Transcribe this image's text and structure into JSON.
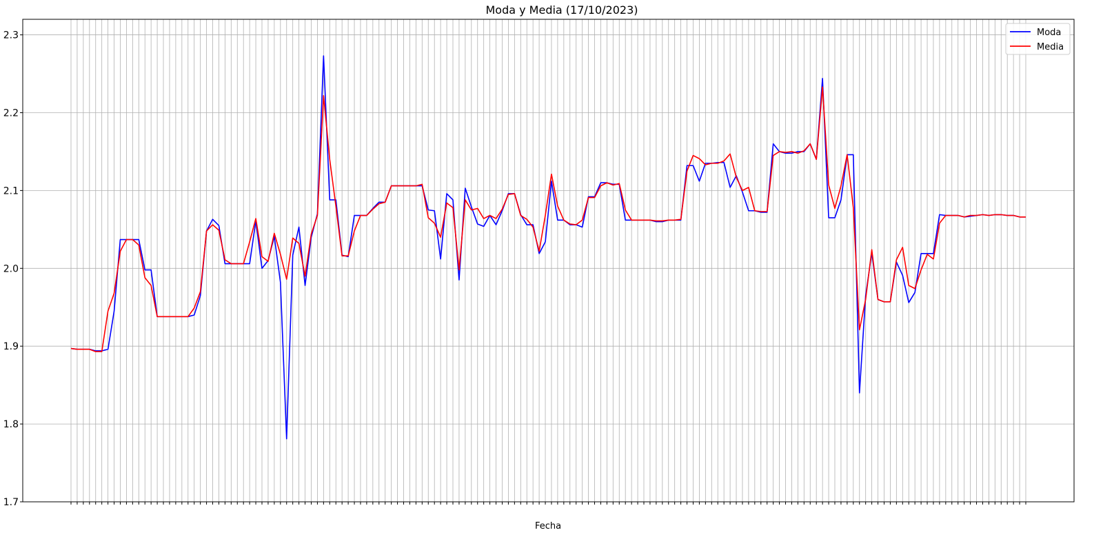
{
  "chart_data": {
    "type": "line",
    "title": "Moda y Media (17/10/2023)",
    "xlabel": "Fecha",
    "ylabel": "",
    "ylim": [
      1.7,
      2.32
    ],
    "yticks": [
      "1.7",
      "1.8",
      "1.9",
      "2.0",
      "2.1",
      "2.2",
      "2.3"
    ],
    "grid": true,
    "legend_position": "top-right",
    "colors": {
      "moda": "#0000ff",
      "media": "#ff0000",
      "grid": "#b0b0b0"
    },
    "series": [
      {
        "name": "Moda",
        "values": [
          1.897,
          1.896,
          1.896,
          1.896,
          1.894,
          1.894,
          1.896,
          1.945,
          2.037,
          2.037,
          2.037,
          2.037,
          1.998,
          1.998,
          1.938,
          1.938,
          1.938,
          1.938,
          1.938,
          1.938,
          1.94,
          1.965,
          2.048,
          2.063,
          2.055,
          2.006,
          2.006,
          2.006,
          2.006,
          2.006,
          2.061,
          2.0,
          2.01,
          2.041,
          1.982,
          1.781,
          2.017,
          2.053,
          1.978,
          2.04,
          2.07,
          2.273,
          2.088,
          2.088,
          2.017,
          2.015,
          2.068,
          2.068,
          2.068,
          2.077,
          2.085,
          2.085,
          2.106,
          2.106,
          2.106,
          2.106,
          2.106,
          2.106,
          2.075,
          2.074,
          2.012,
          2.096,
          2.088,
          1.985,
          2.103,
          2.079,
          2.057,
          2.054,
          2.068,
          2.056,
          2.074,
          2.096,
          2.096,
          2.069,
          2.056,
          2.056,
          2.019,
          2.034,
          2.112,
          2.062,
          2.062,
          2.056,
          2.056,
          2.053,
          2.092,
          2.092,
          2.11,
          2.11,
          2.108,
          2.108,
          2.062,
          2.062,
          2.062,
          2.062,
          2.062,
          2.06,
          2.06,
          2.062,
          2.062,
          2.062,
          2.132,
          2.132,
          2.112,
          2.135,
          2.135,
          2.136,
          2.136,
          2.104,
          2.119,
          2.098,
          2.074,
          2.074,
          2.072,
          2.072,
          2.16,
          2.15,
          2.148,
          2.148,
          2.15,
          2.15,
          2.16,
          2.14,
          2.244,
          2.065,
          2.065,
          2.088,
          2.146,
          2.146,
          1.84,
          1.965,
          2.02,
          1.96,
          1.957,
          1.957,
          2.008,
          1.991,
          1.956,
          1.969,
          2.019,
          2.019,
          2.019,
          2.069,
          2.068,
          2.068,
          2.068,
          2.066,
          2.067,
          2.068,
          2.069,
          2.068,
          2.069,
          2.069,
          2.068,
          2.068,
          2.066,
          2.066
        ]
      },
      {
        "name": "Media",
        "values": [
          1.897,
          1.896,
          1.896,
          1.896,
          1.893,
          1.893,
          1.945,
          1.968,
          2.022,
          2.037,
          2.037,
          2.03,
          1.988,
          1.978,
          1.938,
          1.938,
          1.938,
          1.938,
          1.938,
          1.938,
          1.949,
          1.97,
          2.048,
          2.056,
          2.049,
          2.011,
          2.006,
          2.006,
          2.006,
          2.034,
          2.064,
          2.015,
          2.009,
          2.045,
          2.018,
          1.986,
          2.039,
          2.032,
          1.99,
          2.044,
          2.068,
          2.222,
          2.14,
          2.08,
          2.016,
          2.016,
          2.048,
          2.068,
          2.068,
          2.076,
          2.083,
          2.085,
          2.106,
          2.106,
          2.106,
          2.106,
          2.106,
          2.108,
          2.065,
          2.058,
          2.04,
          2.084,
          2.078,
          1.998,
          2.088,
          2.075,
          2.077,
          2.064,
          2.068,
          2.064,
          2.076,
          2.095,
          2.096,
          2.068,
          2.063,
          2.053,
          2.022,
          2.068,
          2.121,
          2.08,
          2.062,
          2.057,
          2.056,
          2.062,
          2.091,
          2.091,
          2.106,
          2.11,
          2.107,
          2.109,
          2.075,
          2.062,
          2.062,
          2.062,
          2.062,
          2.061,
          2.061,
          2.062,
          2.062,
          2.063,
          2.125,
          2.145,
          2.141,
          2.133,
          2.135,
          2.135,
          2.138,
          2.147,
          2.117,
          2.1,
          2.104,
          2.074,
          2.073,
          2.073,
          2.145,
          2.15,
          2.149,
          2.15,
          2.148,
          2.151,
          2.16,
          2.14,
          2.233,
          2.107,
          2.077,
          2.106,
          2.146,
          2.078,
          1.921,
          1.96,
          2.024,
          1.96,
          1.957,
          1.957,
          2.011,
          2.027,
          1.978,
          1.974,
          1.998,
          2.018,
          2.012,
          2.058,
          2.068,
          2.068,
          2.068,
          2.066,
          2.068,
          2.068,
          2.069,
          2.068,
          2.069,
          2.069,
          2.068,
          2.068,
          2.066,
          2.066
        ]
      }
    ]
  }
}
